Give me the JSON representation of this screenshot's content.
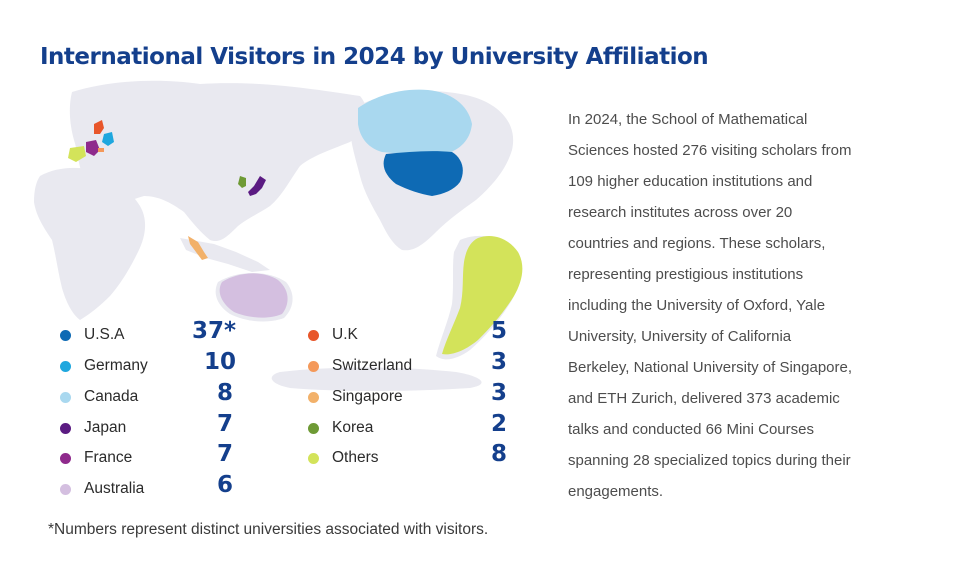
{
  "title": "International Visitors in 2024 by University Affiliation",
  "description": [
    "In 2024, the School of Mathematical",
    "Sciences hosted 276 visiting scholars from",
    "109 higher education institutions and",
    "research institutes across over 20",
    "countries and regions. These scholars,",
    "representing prestigious institutions",
    "including the University of Oxford, Yale",
    "University, University of California",
    "Berkeley, National University of Singapore,",
    "and ETH Zurich, delivered 373 academic",
    "talks and conducted 66 Mini Courses",
    "spanning 28 specialized topics during their",
    "engagements."
  ],
  "legend_left": [
    {
      "label": "U.S.A",
      "value": "37*",
      "color": "#0e6ab4"
    },
    {
      "label": "Germany",
      "value": "10",
      "color": "#1fa7de"
    },
    {
      "label": "Canada",
      "value": "8",
      "color": "#a9d8ef"
    },
    {
      "label": "Japan",
      "value": "7",
      "color": "#5b1b82"
    },
    {
      "label": "France",
      "value": "7",
      "color": "#8f2a8c"
    },
    {
      "label": "Australia",
      "value": "6",
      "color": "#d4bfe0"
    }
  ],
  "legend_right": [
    {
      "label": "U.K",
      "value": "5",
      "color": "#e8562a"
    },
    {
      "label": "Switzerland",
      "value": "3",
      "color": "#f4995a"
    },
    {
      "label": "Singapore",
      "value": "3",
      "color": "#f2b16a"
    },
    {
      "label": "Korea",
      "value": "2",
      "color": "#6e9a35"
    },
    {
      "label": "Others",
      "value": "8",
      "color": "#d3e35a"
    }
  ],
  "footnote": "*Numbers represent distinct universities associated with visitors.",
  "colors": {
    "title": "#143f8c",
    "land": "#e9e9f0",
    "text": "#4d4d4d"
  }
}
